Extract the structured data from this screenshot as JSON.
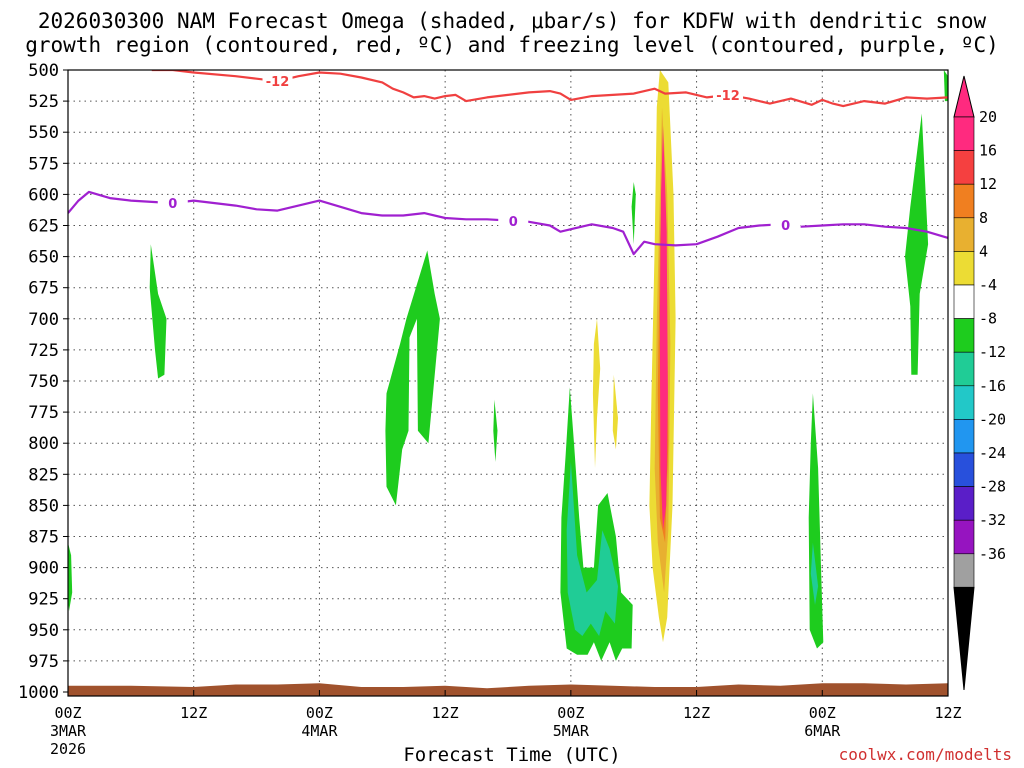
{
  "chart_data": {
    "type": "heatmap",
    "title_line1": "2026030300 NAM Forecast Omega (shaded, μbar/s) for KDFW with dendritic snow",
    "title_line2": "growth region (contoured, red, ºC) and freezing level (contoured, purple, ºC)",
    "xlabel": "Forecast Time (UTC)",
    "credit": "coolwx.com/modelts",
    "xlim": [
      0,
      84
    ],
    "ylim": [
      1000,
      500
    ],
    "y_ticks": [
      500,
      525,
      550,
      575,
      600,
      625,
      650,
      675,
      700,
      725,
      750,
      775,
      800,
      825,
      850,
      875,
      900,
      925,
      950,
      975,
      1000
    ],
    "x_ticks": [
      {
        "hour": 0,
        "label": "00Z",
        "sub": "3MAR",
        "sub2": "2026"
      },
      {
        "hour": 12,
        "label": "12Z",
        "sub": "",
        "sub2": ""
      },
      {
        "hour": 24,
        "label": "00Z",
        "sub": "4MAR",
        "sub2": ""
      },
      {
        "hour": 36,
        "label": "12Z",
        "sub": "",
        "sub2": ""
      },
      {
        "hour": 48,
        "label": "00Z",
        "sub": "5MAR",
        "sub2": ""
      },
      {
        "hour": 60,
        "label": "12Z",
        "sub": "",
        "sub2": ""
      },
      {
        "hour": 72,
        "label": "00Z",
        "sub": "6MAR",
        "sub2": ""
      },
      {
        "hour": 84,
        "label": "12Z",
        "sub": "",
        "sub2": ""
      }
    ],
    "grid": true,
    "colorbar": {
      "labels": [
        "20",
        "16",
        "12",
        "8",
        "4",
        "-4",
        "-8",
        "-12",
        "-16",
        "-20",
        "-24",
        "-28",
        "-32",
        "-36"
      ],
      "colors": [
        "#ff2a7f",
        "#f54040",
        "#f07f20",
        "#e8b030",
        "#ecdc34",
        "#ffffff",
        "#1ecc1e",
        "#20cc96",
        "#22c8c8",
        "#2196f0",
        "#2850dc",
        "#5a1ec8",
        "#9614c0",
        "#a0a0a0"
      ],
      "top_arrow_color": "#ff2a7f",
      "bottom_arrow_color": "#000000"
    },
    "contours": [
      {
        "name": "-12",
        "color": "#f04040",
        "label_at_hours": [
          20,
          63
        ],
        "points": [
          [
            8,
            500
          ],
          [
            10,
            500
          ],
          [
            12,
            502
          ],
          [
            16,
            505
          ],
          [
            18,
            507
          ],
          [
            20,
            509
          ],
          [
            22,
            505
          ],
          [
            24,
            502
          ],
          [
            26,
            503
          ],
          [
            28,
            506
          ],
          [
            30,
            510
          ],
          [
            31,
            515
          ],
          [
            32,
            518
          ],
          [
            33,
            522
          ],
          [
            34,
            521
          ],
          [
            35,
            523
          ],
          [
            36,
            521
          ],
          [
            37,
            520
          ],
          [
            38,
            525
          ],
          [
            40,
            522
          ],
          [
            42,
            520
          ],
          [
            44,
            518
          ],
          [
            46,
            517
          ],
          [
            47,
            519
          ],
          [
            48,
            524
          ],
          [
            50,
            521
          ],
          [
            52,
            520
          ],
          [
            54,
            519
          ],
          [
            56,
            515
          ],
          [
            57,
            519
          ],
          [
            59,
            518
          ],
          [
            61,
            522
          ],
          [
            63,
            520
          ],
          [
            65,
            523
          ],
          [
            67,
            527
          ],
          [
            69,
            523
          ],
          [
            71,
            528
          ],
          [
            72,
            524
          ],
          [
            73,
            527
          ],
          [
            74,
            529
          ],
          [
            76,
            525
          ],
          [
            78,
            527
          ],
          [
            80,
            522
          ],
          [
            82,
            523
          ],
          [
            84,
            522
          ]
        ]
      },
      {
        "name": "0",
        "color": "#a020d0",
        "label_at_hours": [
          10,
          42.5,
          68.5
        ],
        "points": [
          [
            0,
            615
          ],
          [
            1,
            605
          ],
          [
            2,
            598
          ],
          [
            4,
            603
          ],
          [
            6,
            605
          ],
          [
            8,
            606
          ],
          [
            10,
            607
          ],
          [
            12,
            605
          ],
          [
            14,
            607
          ],
          [
            16,
            609
          ],
          [
            18,
            612
          ],
          [
            20,
            613
          ],
          [
            22,
            609
          ],
          [
            24,
            605
          ],
          [
            26,
            610
          ],
          [
            28,
            615
          ],
          [
            30,
            617
          ],
          [
            32,
            617
          ],
          [
            34,
            615
          ],
          [
            36,
            619
          ],
          [
            38,
            620
          ],
          [
            40,
            620
          ],
          [
            42,
            621
          ],
          [
            44,
            622
          ],
          [
            46,
            625
          ],
          [
            47,
            630
          ],
          [
            48,
            628
          ],
          [
            50,
            624
          ],
          [
            52,
            627
          ],
          [
            53,
            630
          ],
          [
            54,
            648
          ],
          [
            55,
            638
          ],
          [
            56,
            640
          ],
          [
            58,
            641
          ],
          [
            60,
            640
          ],
          [
            62,
            634
          ],
          [
            64,
            627
          ],
          [
            66,
            625
          ],
          [
            68,
            624
          ],
          [
            70,
            626
          ],
          [
            72,
            625
          ],
          [
            74,
            624
          ],
          [
            76,
            624
          ],
          [
            78,
            626
          ],
          [
            80,
            627
          ],
          [
            82,
            630
          ],
          [
            84,
            635
          ]
        ]
      }
    ],
    "surface_band": {
      "color": "#a0522d",
      "points": [
        [
          0,
          995
        ],
        [
          6,
          995
        ],
        [
          12,
          996
        ],
        [
          16,
          994
        ],
        [
          20,
          994
        ],
        [
          24,
          993
        ],
        [
          28,
          996
        ],
        [
          32,
          996
        ],
        [
          36,
          995
        ],
        [
          40,
          997
        ],
        [
          44,
          995
        ],
        [
          48,
          994
        ],
        [
          52,
          995
        ],
        [
          56,
          996
        ],
        [
          60,
          996
        ],
        [
          64,
          994
        ],
        [
          68,
          995
        ],
        [
          72,
          993
        ],
        [
          76,
          993
        ],
        [
          80,
          994
        ],
        [
          84,
          993
        ]
      ]
    },
    "omega_regions": [
      {
        "level": "-4",
        "color": "#1ecc1e",
        "points": [
          [
            0,
            880
          ],
          [
            0.3,
            890
          ],
          [
            0.4,
            920
          ],
          [
            0.1,
            935
          ],
          [
            0,
            925
          ]
        ]
      },
      {
        "level": "-4",
        "color": "#1ecc1e",
        "points": [
          [
            7.9,
            640
          ],
          [
            8.6,
            680
          ],
          [
            9.4,
            700
          ],
          [
            9.2,
            745
          ],
          [
            8.6,
            748
          ],
          [
            8.3,
            725
          ],
          [
            7.8,
            675
          ]
        ]
      },
      {
        "level": "-4",
        "color": "#1ecc1e",
        "points": [
          [
            34.3,
            645
          ],
          [
            35.0,
            680
          ],
          [
            35.5,
            700
          ],
          [
            34.4,
            800
          ],
          [
            33.4,
            790
          ],
          [
            33.3,
            700
          ],
          [
            32.6,
            715
          ],
          [
            32.5,
            790
          ],
          [
            31.9,
            805
          ],
          [
            31.3,
            850
          ],
          [
            30.4,
            835
          ],
          [
            30.3,
            790
          ],
          [
            30.4,
            760
          ],
          [
            31.7,
            720
          ],
          [
            32.3,
            700
          ]
        ]
      },
      {
        "level": "-4",
        "color": "#1ecc1e",
        "points": [
          [
            40.7,
            765
          ],
          [
            41.0,
            790
          ],
          [
            40.8,
            815
          ],
          [
            40.6,
            790
          ]
        ]
      },
      {
        "level": "-4",
        "color": "#1ecc1e",
        "points": [
          [
            47.9,
            755
          ],
          [
            48.3,
            800
          ],
          [
            48.8,
            860
          ],
          [
            49.2,
            900
          ],
          [
            50.2,
            900
          ],
          [
            50.6,
            850
          ],
          [
            51.5,
            840
          ],
          [
            52.3,
            875
          ],
          [
            52.8,
            920
          ],
          [
            53.9,
            930
          ],
          [
            53.8,
            965
          ],
          [
            52.9,
            965
          ],
          [
            52.3,
            975
          ],
          [
            51.7,
            960
          ],
          [
            50.9,
            975
          ],
          [
            50.2,
            960
          ],
          [
            49.6,
            970
          ],
          [
            48.6,
            970
          ],
          [
            47.6,
            965
          ],
          [
            47.0,
            920
          ],
          [
            47.1,
            860
          ],
          [
            47.5,
            810
          ]
        ]
      },
      {
        "level": "-8",
        "color": "#20cc96",
        "points": [
          [
            48.0,
            815
          ],
          [
            48.6,
            890
          ],
          [
            49.5,
            920
          ],
          [
            50.5,
            910
          ],
          [
            51.0,
            870
          ],
          [
            51.7,
            885
          ],
          [
            52.5,
            915
          ],
          [
            52.2,
            945
          ],
          [
            51.3,
            935
          ],
          [
            50.7,
            955
          ],
          [
            49.9,
            945
          ],
          [
            49.1,
            955
          ],
          [
            48.4,
            950
          ],
          [
            47.7,
            920
          ],
          [
            47.6,
            870
          ]
        ]
      },
      {
        "level": "-4",
        "color": "#1ecc1e",
        "points": [
          [
            71.1,
            760
          ],
          [
            71.6,
            820
          ],
          [
            71.9,
            905
          ],
          [
            72.1,
            960
          ],
          [
            71.5,
            965
          ],
          [
            70.8,
            950
          ],
          [
            70.7,
            860
          ],
          [
            70.9,
            800
          ]
        ]
      },
      {
        "level": "-8",
        "color": "#20cc96",
        "points": [
          [
            71.1,
            880
          ],
          [
            71.6,
            915
          ],
          [
            71.3,
            930
          ],
          [
            70.9,
            905
          ]
        ]
      },
      {
        "level": "-4",
        "color": "#1ecc1e",
        "points": [
          [
            81.5,
            535
          ],
          [
            82.1,
            640
          ],
          [
            81.3,
            680
          ],
          [
            81.1,
            745
          ],
          [
            80.5,
            745
          ],
          [
            80.4,
            690
          ],
          [
            79.9,
            650
          ],
          [
            80.4,
            610
          ]
        ]
      },
      {
        "level": "-4",
        "color": "#1ecc1e",
        "points": [
          [
            83.6,
            500
          ],
          [
            84,
            505
          ],
          [
            84,
            525
          ],
          [
            83.7,
            525
          ]
        ]
      },
      {
        "level": "-4",
        "color": "#1ecc1e",
        "points": [
          [
            54.0,
            590
          ],
          [
            54.2,
            600
          ],
          [
            54.0,
            640
          ],
          [
            53.8,
            610
          ]
        ]
      },
      {
        "level": "4",
        "color": "#ecdc34",
        "points": [
          [
            56.5,
            500
          ],
          [
            57.3,
            510
          ],
          [
            57.8,
            600
          ],
          [
            58.0,
            700
          ],
          [
            57.7,
            850
          ],
          [
            57.2,
            940
          ],
          [
            56.8,
            960
          ],
          [
            56.4,
            940
          ],
          [
            55.8,
            900
          ],
          [
            55.5,
            850
          ],
          [
            55.7,
            760
          ],
          [
            56.0,
            640
          ],
          [
            56.2,
            530
          ]
        ]
      },
      {
        "level": "4",
        "color": "#ecdc34",
        "points": [
          [
            50.5,
            700
          ],
          [
            50.8,
            740
          ],
          [
            50.5,
            780
          ],
          [
            50.3,
            820
          ],
          [
            50.1,
            760
          ],
          [
            50.2,
            720
          ]
        ]
      },
      {
        "level": "4",
        "color": "#ecdc34",
        "points": [
          [
            52.1,
            745
          ],
          [
            52.5,
            780
          ],
          [
            52.3,
            805
          ],
          [
            52.0,
            790
          ]
        ]
      },
      {
        "level": "8",
        "color": "#e8b030",
        "points": [
          [
            56.7,
            530
          ],
          [
            57.2,
            600
          ],
          [
            57.5,
            720
          ],
          [
            57.3,
            870
          ],
          [
            56.9,
            920
          ],
          [
            56.3,
            880
          ],
          [
            56.0,
            820
          ],
          [
            56.2,
            700
          ],
          [
            56.5,
            600
          ]
        ]
      },
      {
        "level": "12",
        "color": "#f07f20",
        "points": [
          [
            56.8,
            570
          ],
          [
            57.2,
            680
          ],
          [
            57.3,
            800
          ],
          [
            57.0,
            880
          ],
          [
            56.5,
            860
          ],
          [
            56.3,
            760
          ],
          [
            56.5,
            640
          ]
        ]
      },
      {
        "level": "16",
        "color": "#f54040",
        "points": [
          [
            56.9,
            600
          ],
          [
            57.2,
            720
          ],
          [
            57.2,
            820
          ],
          [
            56.9,
            860
          ],
          [
            56.6,
            820
          ],
          [
            56.5,
            720
          ]
        ]
      },
      {
        "level": "20",
        "color": "#ff2a7f",
        "points": [
          [
            56.8,
            545
          ],
          [
            57.15,
            630
          ],
          [
            57.25,
            760
          ],
          [
            57.1,
            850
          ],
          [
            56.8,
            870
          ],
          [
            56.55,
            820
          ],
          [
            56.5,
            700
          ],
          [
            56.6,
            600
          ]
        ]
      }
    ]
  }
}
